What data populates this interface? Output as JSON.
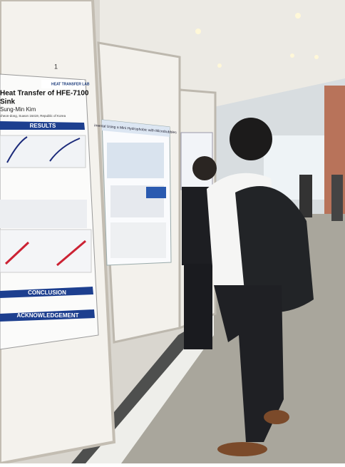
{
  "poster_left": {
    "board_number": "1",
    "lab": "HEAT TRANSFER LAB",
    "title": "Heat Transfer of HFE-7100",
    "title_line2": "Sink",
    "author": "Sung-Min Kim",
    "affiliation": "cheon-dong, Suwon 16419, Republic of Korea",
    "sections": [
      "RESULTS",
      "CONCLUSION",
      "ACKNOWLEDGEMENT"
    ]
  },
  "poster_middle": {
    "title": "imental Using a Mini Hydrophobic with Microbubbles"
  }
}
